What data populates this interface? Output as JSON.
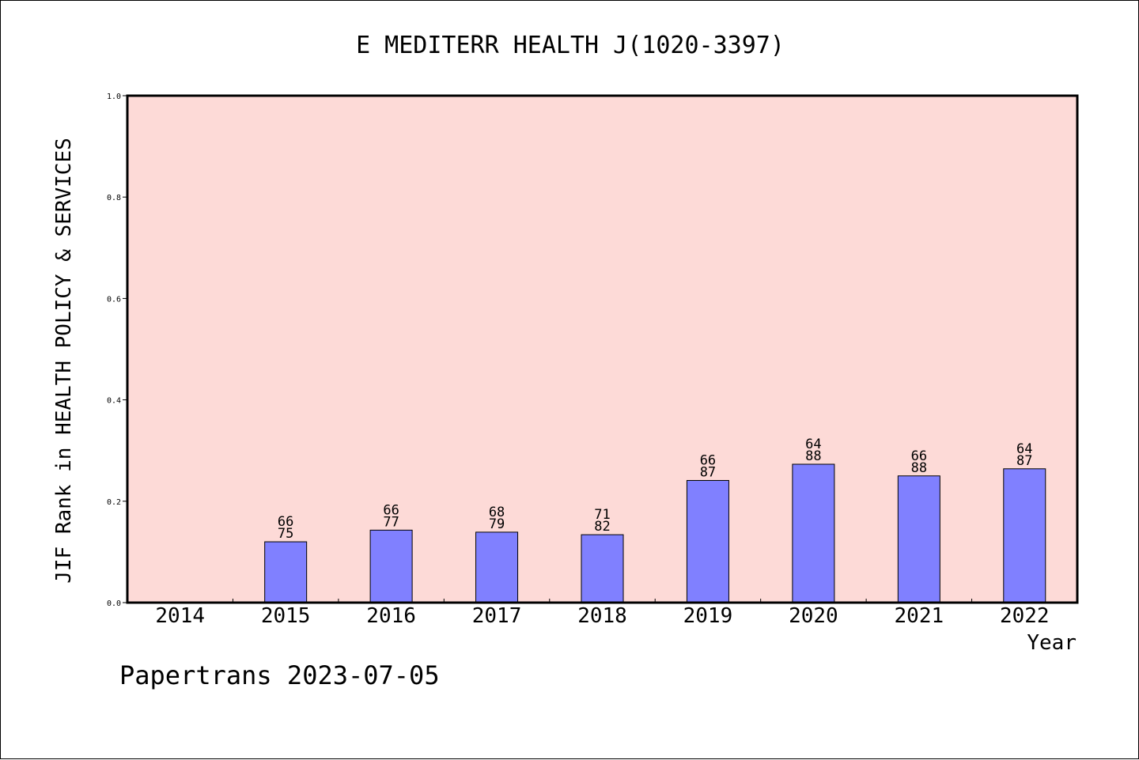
{
  "footer": "Papertrans 2023-07-05",
  "colors": {
    "plot_bg": "#fddad7",
    "bar": "#8080ff",
    "axis": "#000000"
  },
  "chart_data": {
    "type": "bar",
    "title": "E MEDITERR HEALTH J(1020-3397)",
    "xlabel": "Year",
    "ylabel": "JIF Rank in HEALTH POLICY & SERVICES",
    "ylim": [
      0,
      1.0
    ],
    "yticks": [
      "0.0",
      "0.2",
      "0.4",
      "0.6",
      "0.8",
      "1.0"
    ],
    "grid": false,
    "categories": [
      "2014",
      "2015",
      "2016",
      "2017",
      "2018",
      "2019",
      "2020",
      "2021",
      "2022"
    ],
    "values": [
      null,
      0.12,
      0.143,
      0.139,
      0.134,
      0.241,
      0.273,
      0.25,
      0.264
    ],
    "labels_top": [
      null,
      "66",
      "66",
      "68",
      "71",
      "66",
      "64",
      "66",
      "64"
    ],
    "labels_bottom": [
      null,
      "75",
      "77",
      "79",
      "82",
      "87",
      "88",
      "88",
      "87"
    ]
  }
}
